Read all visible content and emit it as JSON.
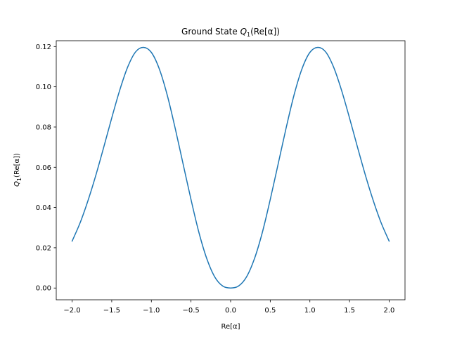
{
  "chart_data": {
    "type": "line",
    "title": "Ground State Q_1(Re[α])",
    "title_parts": {
      "pre": "Ground State ",
      "q": "Q",
      "sub": "1",
      "post": "(Re[α])"
    },
    "xlabel": "Re[α]",
    "ylabel_parts": {
      "q": "Q",
      "sub": "1",
      "post": "(Re[α])"
    },
    "xlim": [
      -2.2,
      2.2
    ],
    "ylim": [
      -0.00585,
      0.1229
    ],
    "xticks": [
      -2.0,
      -1.5,
      -1.0,
      -0.5,
      0.0,
      0.5,
      1.0,
      1.5,
      2.0
    ],
    "xtick_labels": [
      "−2.0",
      "−1.5",
      "−1.0",
      "−0.5",
      "0.0",
      "0.5",
      "1.0",
      "1.5",
      "2.0"
    ],
    "yticks": [
      0.0,
      0.02,
      0.04,
      0.06,
      0.08,
      0.1,
      0.12
    ],
    "ytick_labels": [
      "0.00",
      "0.02",
      "0.04",
      "0.06",
      "0.08",
      "0.10",
      "0.12"
    ],
    "grid": false,
    "series": [
      {
        "color": "#1f77b4",
        "x": [
          -2.0,
          -1.9,
          -1.8,
          -1.7,
          -1.6,
          -1.5,
          -1.4,
          -1.3,
          -1.2,
          -1.1,
          -1.0,
          -0.9,
          -0.8,
          -0.7,
          -0.6,
          -0.5,
          -0.4,
          -0.3,
          -0.2,
          -0.1,
          0.0,
          0.1,
          0.2,
          0.3,
          0.4,
          0.5,
          0.6,
          0.7,
          0.8,
          0.9,
          1.0,
          1.1,
          1.2,
          1.3,
          1.4,
          1.5,
          1.6,
          1.7,
          1.8,
          1.9,
          2.0
        ],
        "values": [
          0.0233,
          0.0323,
          0.0434,
          0.0561,
          0.0701,
          0.0845,
          0.0982,
          0.1097,
          0.1173,
          0.1196,
          0.1171,
          0.1089,
          0.0959,
          0.0795,
          0.0617,
          0.044,
          0.0276,
          0.0145,
          0.0055,
          0.001,
          0.0,
          0.001,
          0.0055,
          0.0145,
          0.0276,
          0.044,
          0.0617,
          0.0795,
          0.0959,
          0.1089,
          0.1171,
          0.1196,
          0.1173,
          0.1097,
          0.0982,
          0.0845,
          0.0701,
          0.0561,
          0.0434,
          0.0323,
          0.0233
        ]
      }
    ]
  }
}
